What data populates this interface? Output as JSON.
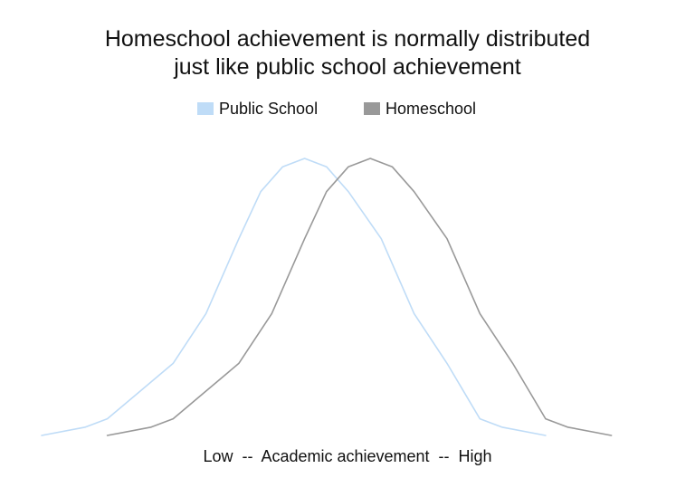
{
  "chart_data": {
    "type": "line",
    "title_lines": [
      "Homeschool achievement is normally distributed",
      "just like public school achievement"
    ],
    "xlabel": "Low  --  Academic achievement  --  High",
    "ylabel": "",
    "grid": false,
    "axes_visible": false,
    "legend_position": "top-center",
    "xlim": [
      0,
      28
    ],
    "ylim": [
      0,
      100
    ],
    "series": [
      {
        "name": "Public School",
        "color": "#bfdcf7",
        "x": [
          0,
          2,
          3,
          4.5,
          6,
          7.5,
          9,
          10,
          11,
          12,
          13,
          14,
          15.5,
          17,
          18.5,
          20,
          21,
          23
        ],
        "y": [
          0,
          3,
          6,
          16,
          26,
          44,
          71,
          88,
          97,
          100,
          97,
          88,
          71,
          44,
          26,
          6,
          3,
          0
        ]
      },
      {
        "name": "Homeschool",
        "color": "#999999",
        "x": [
          3,
          5,
          6,
          7.5,
          9,
          10.5,
          12,
          13,
          14,
          15,
          16,
          17,
          18.5,
          20,
          21.5,
          23,
          24,
          26
        ],
        "y": [
          0,
          3,
          6,
          16,
          26,
          44,
          71,
          88,
          97,
          100,
          97,
          88,
          71,
          44,
          26,
          6,
          3,
          0
        ]
      }
    ]
  }
}
